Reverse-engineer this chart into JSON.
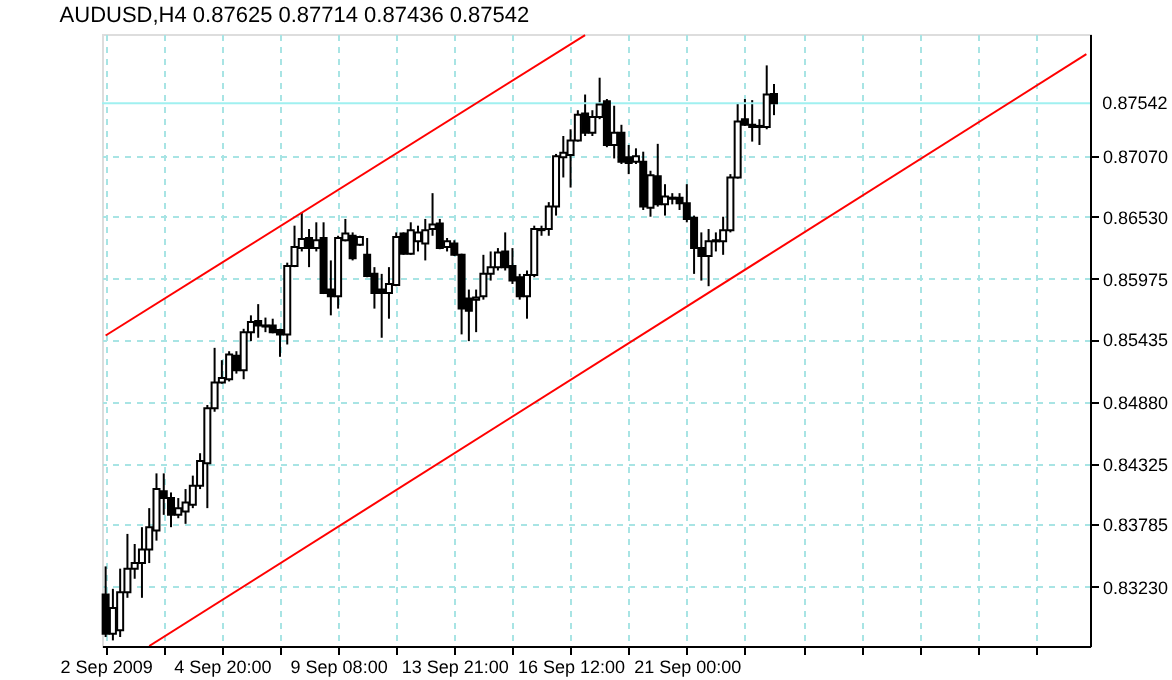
{
  "chart_data": {
    "type": "candlestick",
    "title": "AUDUSD,H4  0.87625 0.87714 0.87436 0.87542",
    "color": "#000000",
    "categories": [
      "2 Sep 2009",
      null,
      null,
      null,
      null,
      null,
      null,
      null,
      null,
      null,
      null,
      null,
      null,
      null,
      null,
      null,
      "4 Sep 20:00",
      null,
      null,
      null,
      null,
      null,
      null,
      null,
      null,
      null,
      null,
      null,
      null,
      null,
      null,
      null,
      "9 Sep 08:00",
      null,
      null,
      null,
      null,
      null,
      null,
      null,
      null,
      null,
      null,
      null,
      null,
      null,
      null,
      null,
      "13 Sep 21:00",
      null,
      null,
      null,
      null,
      null,
      null,
      null,
      null,
      null,
      null,
      null,
      null,
      null,
      null,
      null,
      "16 Sep 12:00",
      null,
      null,
      null,
      null,
      null,
      null,
      null,
      null,
      null,
      null,
      null,
      null,
      null,
      null,
      null,
      "21 Sep 00:00",
      null,
      null,
      null,
      null,
      null,
      null,
      null,
      null,
      null,
      null,
      null,
      null,
      null,
      null,
      null,
      null,
      null,
      null,
      null,
      null,
      null,
      null,
      null,
      null,
      null,
      null,
      null,
      null,
      null,
      null,
      null,
      null,
      null,
      null,
      null,
      null,
      null,
      null,
      null,
      null,
      null,
      null,
      null,
      null,
      null,
      null,
      null,
      null,
      null,
      null,
      null,
      null,
      null,
      null,
      null
    ],
    "ohlc": [
      [
        0.8316,
        0.8341,
        0.8278,
        0.8281
      ],
      [
        0.8281,
        0.8321,
        0.8275,
        0.8304
      ],
      [
        0.8284,
        0.8339,
        0.8278,
        0.8318
      ],
      [
        0.8318,
        0.837,
        0.8313,
        0.8339
      ],
      [
        0.8339,
        0.8361,
        0.833,
        0.8344
      ],
      [
        0.8344,
        0.8376,
        0.8313,
        0.8356
      ],
      [
        0.8356,
        0.8393,
        0.8344,
        0.8376
      ],
      [
        0.8373,
        0.8424,
        0.8364,
        0.841
      ],
      [
        0.8408,
        0.8424,
        0.8387,
        0.8402
      ],
      [
        0.8402,
        0.8407,
        0.8376,
        0.8387
      ],
      [
        0.8387,
        0.8402,
        0.8384,
        0.8393
      ],
      [
        0.839,
        0.841,
        0.8379,
        0.8398
      ],
      [
        0.8396,
        0.8422,
        0.8393,
        0.8413
      ],
      [
        0.8413,
        0.8442,
        0.841,
        0.8435
      ],
      [
        0.8433,
        0.8485,
        0.8393,
        0.8482
      ],
      [
        0.8482,
        0.8536,
        0.8479,
        0.8505
      ],
      [
        0.8505,
        0.8525,
        0.8504,
        0.8509
      ],
      [
        0.8508,
        0.8533,
        0.8506,
        0.853
      ],
      [
        0.8529,
        0.8533,
        0.8513,
        0.8516
      ],
      [
        0.8516,
        0.8553,
        0.8508,
        0.855
      ],
      [
        0.855,
        0.8565,
        0.8542,
        0.8559
      ],
      [
        0.856,
        0.8575,
        0.8545,
        0.8556
      ],
      [
        0.8556,
        0.8563,
        0.855,
        0.8555
      ],
      [
        0.8556,
        0.8562,
        0.8549,
        0.855
      ],
      [
        0.8552,
        0.8553,
        0.8528,
        0.8548
      ],
      [
        0.8548,
        0.8612,
        0.8539,
        0.8609
      ],
      [
        0.8609,
        0.8645,
        0.8608,
        0.8626
      ],
      [
        0.8625,
        0.8657,
        0.8622,
        0.8633
      ],
      [
        0.8634,
        0.8642,
        0.8608,
        0.8625
      ],
      [
        0.8625,
        0.8648,
        0.8622,
        0.8632
      ],
      [
        0.8634,
        0.8648,
        0.8584,
        0.8585
      ],
      [
        0.8588,
        0.8614,
        0.8565,
        0.8582
      ],
      [
        0.8582,
        0.8636,
        0.8571,
        0.8634
      ],
      [
        0.8632,
        0.8651,
        0.8631,
        0.8638
      ],
      [
        0.8636,
        0.8639,
        0.8614,
        0.8616
      ],
      [
        0.8628,
        0.8636,
        0.8627,
        0.8635
      ],
      [
        0.8619,
        0.8634,
        0.8599,
        0.86
      ],
      [
        0.8602,
        0.8608,
        0.8571,
        0.8585
      ],
      [
        0.8588,
        0.8602,
        0.8545,
        0.8585
      ],
      [
        0.8585,
        0.8608,
        0.8562,
        0.8593
      ],
      [
        0.8592,
        0.8639,
        0.8591,
        0.8635
      ],
      [
        0.8638,
        0.8639,
        0.8619,
        0.862
      ],
      [
        0.862,
        0.8648,
        0.8619,
        0.8641
      ],
      [
        0.8631,
        0.8645,
        0.8622,
        0.8639
      ],
      [
        0.8629,
        0.8651,
        0.8614,
        0.8641
      ],
      [
        0.8642,
        0.8674,
        0.8636,
        0.8646
      ],
      [
        0.8647,
        0.8651,
        0.8624,
        0.8625
      ],
      [
        0.8626,
        0.8634,
        0.8622,
        0.8631
      ],
      [
        0.8629,
        0.8632,
        0.8618,
        0.8619
      ],
      [
        0.8619,
        0.862,
        0.8548,
        0.8571
      ],
      [
        0.858,
        0.8588,
        0.8542,
        0.8569
      ],
      [
        0.8579,
        0.8588,
        0.855,
        0.8581
      ],
      [
        0.8582,
        0.8619,
        0.8579,
        0.8602
      ],
      [
        0.8602,
        0.8622,
        0.8596,
        0.8608
      ],
      [
        0.8608,
        0.8625,
        0.8605,
        0.8621
      ],
      [
        0.8622,
        0.8639,
        0.8605,
        0.8608
      ],
      [
        0.8609,
        0.8625,
        0.8593,
        0.8596
      ],
      [
        0.8599,
        0.8602,
        0.8579,
        0.8582
      ],
      [
        0.8582,
        0.8605,
        0.8562,
        0.8601
      ],
      [
        0.8601,
        0.8645,
        0.8599,
        0.8642
      ],
      [
        0.8642,
        0.8645,
        0.8636,
        0.8641
      ],
      [
        0.8642,
        0.8666,
        0.8636,
        0.8662
      ],
      [
        0.8662,
        0.8709,
        0.8654,
        0.8707
      ],
      [
        0.8706,
        0.8725,
        0.8688,
        0.871
      ],
      [
        0.8708,
        0.8731,
        0.8679,
        0.8721
      ],
      [
        0.8721,
        0.8748,
        0.872,
        0.8744
      ],
      [
        0.8745,
        0.8762,
        0.8725,
        0.8728
      ],
      [
        0.8728,
        0.8748,
        0.8725,
        0.8742
      ],
      [
        0.8742,
        0.8777,
        0.874,
        0.8753
      ],
      [
        0.8756,
        0.8758,
        0.8715,
        0.8717
      ],
      [
        0.8717,
        0.8752,
        0.8705,
        0.8728
      ],
      [
        0.8728,
        0.8735,
        0.87,
        0.8702
      ],
      [
        0.8706,
        0.8717,
        0.8691,
        0.8701
      ],
      [
        0.8702,
        0.8714,
        0.87,
        0.8707
      ],
      [
        0.8702,
        0.8711,
        0.8659,
        0.8662
      ],
      [
        0.8661,
        0.8694,
        0.8653,
        0.869
      ],
      [
        0.8689,
        0.8718,
        0.8662,
        0.8664
      ],
      [
        0.8664,
        0.8682,
        0.8654,
        0.8671
      ],
      [
        0.867,
        0.8674,
        0.8664,
        0.8669
      ],
      [
        0.867,
        0.8674,
        0.8659,
        0.8665
      ],
      [
        0.8665,
        0.8682,
        0.8648,
        0.8651
      ],
      [
        0.8652,
        0.8654,
        0.8602,
        0.8625
      ],
      [
        0.8625,
        0.8639,
        0.8596,
        0.8618
      ],
      [
        0.8618,
        0.8642,
        0.8591,
        0.8631
      ],
      [
        0.8631,
        0.8639,
        0.8622,
        0.8632
      ],
      [
        0.8631,
        0.8653,
        0.8619,
        0.8641
      ],
      [
        0.8641,
        0.8691,
        0.8639,
        0.8688
      ],
      [
        0.8688,
        0.8754,
        0.8687,
        0.8738
      ],
      [
        0.874,
        0.8758,
        0.8734,
        0.8735
      ],
      [
        0.8735,
        0.8757,
        0.872,
        0.8733
      ],
      [
        0.8733,
        0.874,
        0.8717,
        0.8734
      ],
      [
        0.8733,
        0.8788,
        0.8731,
        0.8762
      ],
      [
        0.87625,
        0.87714,
        0.87436,
        0.87542
      ],
      null,
      null,
      null,
      null,
      null,
      null,
      null,
      null,
      null,
      null,
      null,
      null,
      null,
      null,
      null,
      null,
      null,
      null,
      null,
      null,
      null,
      null,
      null,
      null,
      null,
      null,
      null,
      null,
      null,
      null,
      null,
      null,
      null,
      null,
      null,
      null,
      null,
      null,
      null,
      null,
      null,
      null,
      null
    ],
    "series": [
      {
        "type": "line",
        "color": "#ff0000",
        "values": [
          0.8547,
          null,
          null,
          null,
          null,
          null,
          null,
          null,
          null,
          null,
          null,
          null,
          null,
          null,
          null,
          null,
          null,
          null,
          null,
          null,
          null,
          null,
          null,
          null,
          null,
          null,
          null,
          null,
          null,
          null,
          null,
          null,
          null,
          null,
          null,
          null,
          null,
          null,
          null,
          null,
          null,
          null,
          null,
          null,
          null,
          null,
          null,
          null,
          null,
          null,
          null,
          null,
          null,
          null,
          null,
          null,
          null,
          null,
          null,
          null,
          null,
          null,
          null,
          null,
          null,
          null,
          0.8815,
          null,
          null,
          null,
          null,
          null,
          null,
          null,
          null,
          null,
          null,
          null,
          null,
          null,
          null,
          null,
          null,
          null,
          null,
          null,
          null,
          null,
          null,
          null,
          null,
          null,
          null,
          null,
          null,
          null,
          null,
          null,
          null,
          null,
          null,
          null,
          null,
          null,
          null,
          null,
          null,
          null,
          null,
          null,
          null,
          null,
          null,
          null,
          null,
          null,
          null,
          null,
          null,
          null,
          null,
          null,
          null,
          null,
          null,
          null,
          null,
          null,
          null,
          null,
          null,
          null,
          null,
          null,
          null,
          null
        ]
      },
      {
        "type": "line",
        "color": "#ff0000",
        "values": [
          null,
          null,
          null,
          null,
          null,
          null,
          0.827,
          null,
          null,
          null,
          null,
          null,
          null,
          null,
          null,
          null,
          null,
          null,
          null,
          null,
          null,
          null,
          null,
          null,
          null,
          null,
          null,
          null,
          null,
          null,
          null,
          null,
          null,
          null,
          null,
          null,
          null,
          null,
          null,
          null,
          null,
          null,
          null,
          null,
          null,
          null,
          null,
          null,
          null,
          null,
          null,
          null,
          null,
          null,
          null,
          null,
          null,
          null,
          null,
          null,
          null,
          null,
          null,
          null,
          null,
          null,
          null,
          null,
          null,
          null,
          null,
          null,
          null,
          null,
          null,
          null,
          null,
          null,
          null,
          null,
          null,
          null,
          null,
          null,
          null,
          null,
          null,
          null,
          null,
          null,
          null,
          null,
          null,
          null,
          null,
          null,
          null,
          null,
          null,
          null,
          null,
          null,
          null,
          null,
          null,
          null,
          null,
          null,
          null,
          null,
          null,
          null,
          null,
          null,
          null,
          null,
          null,
          null,
          null,
          null,
          null,
          null,
          null,
          null,
          null,
          null,
          null,
          null,
          null,
          null,
          null,
          null,
          null,
          null,
          null,
          0.8798
        ]
      }
    ],
    "ylim": [
      0.827,
      0.8816
    ],
    "yticks": [
      {
        "value": 0.8323,
        "label": "0.83230"
      },
      0.83785,
      0.84325,
      {
        "value": 0.8488,
        "label": "0.84880"
      },
      0.85435,
      0.85975,
      {
        "value": 0.8653,
        "label": "0.86530"
      },
      {
        "value": 0.8707,
        "label": "0.87070"
      }
    ],
    "ref_lines": [
      {
        "axis": "y",
        "value": 0.87542,
        "label": "0.87542",
        "color": "#a0f0f0"
      }
    ],
    "grid": true,
    "line_style": "solid"
  }
}
